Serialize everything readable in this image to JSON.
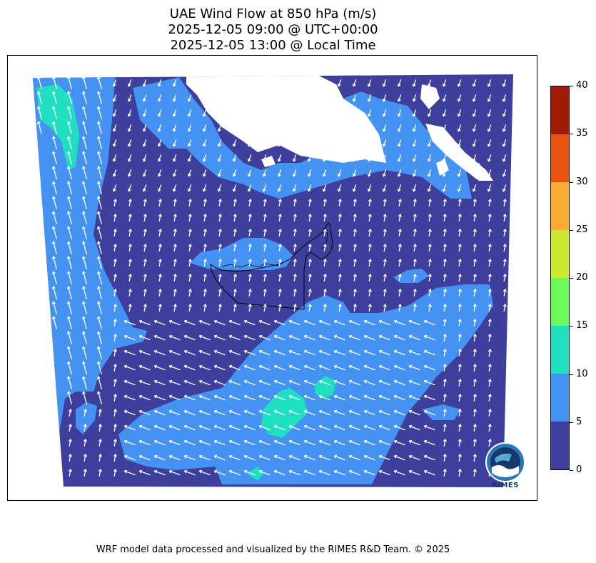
{
  "title": {
    "line1": "UAE Wind Flow at 850 hPa (m/s)",
    "line2": "2025-12-05 09:00 @ UTC+00:00",
    "line3": "2025-12-05 13:00 @ Local Time"
  },
  "colorbar": {
    "ticks": [
      "0",
      "5",
      "10",
      "15",
      "20",
      "25",
      "30",
      "35",
      "40"
    ],
    "levels": [
      {
        "range": "0-5",
        "color": "#3e3f9c"
      },
      {
        "range": "5-10",
        "color": "#4493f3"
      },
      {
        "range": "10-15",
        "color": "#1ee0c0"
      },
      {
        "range": "15-20",
        "color": "#6df95a"
      },
      {
        "range": "20-25",
        "color": "#cbe92e"
      },
      {
        "range": "25-30",
        "color": "#fbac35"
      },
      {
        "range": "30-35",
        "color": "#ea5311"
      },
      {
        "range": "35-40",
        "color": "#a21a04"
      }
    ]
  },
  "map": {
    "colors": {
      "calm": "#3e3f9c",
      "moderate": "#4493f3",
      "strong": "#1ee0c0",
      "arrow": "#ffffff",
      "border": "#000000"
    }
  },
  "logo": {
    "text": "RIMES"
  },
  "credit": "WRF model data processed and visualized by the RIMES R&D Team. © 2025"
}
